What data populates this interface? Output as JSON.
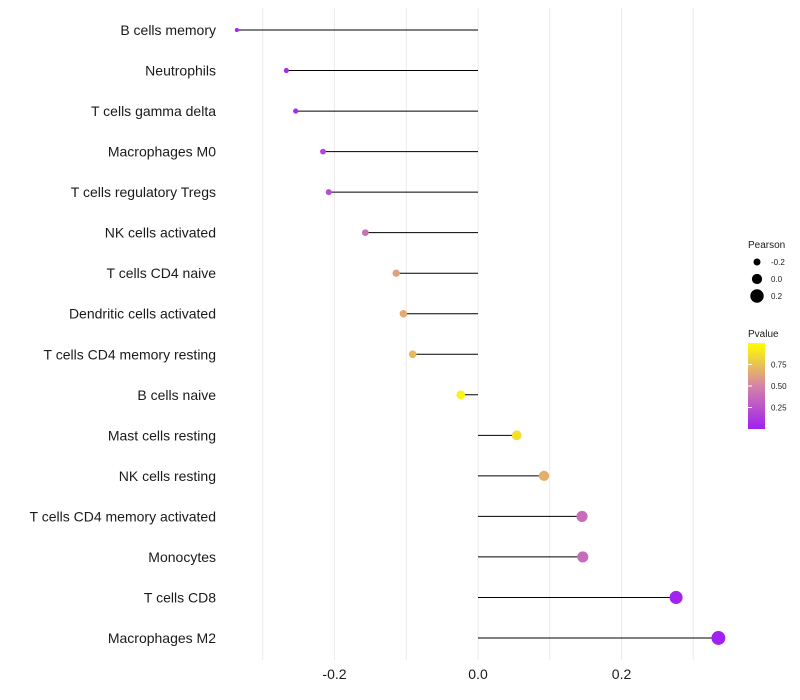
{
  "chart_data": {
    "type": "lollipop",
    "title": "",
    "xlabel": "",
    "ylabel": "",
    "xlim": [
      -0.34,
      0.34
    ],
    "xticks": [
      -0.2,
      0.0,
      0.2
    ],
    "xtick_labels": [
      "-0.2",
      "0.0",
      "0.2"
    ],
    "grid": true,
    "categories": [
      "B cells memory",
      "Neutrophils",
      "T cells gamma delta",
      "Macrophages M0",
      "T cells regulatory  Tregs",
      "NK cells activated",
      "T cells CD4 naive",
      "Dendritic cells activated",
      "T cells CD4 memory resting",
      "B cells naive",
      "Mast cells resting",
      "NK cells resting",
      "T cells CD4 memory activated",
      "Monocytes",
      "T cells CD8",
      "Macrophages M2"
    ],
    "values": [
      -0.336,
      -0.267,
      -0.254,
      -0.216,
      -0.208,
      -0.157,
      -0.114,
      -0.104,
      -0.091,
      -0.024,
      0.054,
      0.092,
      0.145,
      0.146,
      0.276,
      0.335
    ],
    "pvalues": [
      0.02,
      0.05,
      0.07,
      0.18,
      0.22,
      0.4,
      0.62,
      0.66,
      0.72,
      0.95,
      0.87,
      0.68,
      0.38,
      0.38,
      0.02,
      0.01
    ],
    "legend": {
      "size": {
        "title": "Pearson",
        "labels": [
          "-0.2",
          "0.0",
          "0.2"
        ],
        "values": [
          -0.2,
          0.0,
          0.2
        ]
      },
      "color": {
        "title": "Pvalue",
        "labels": [
          "0.75",
          "0.50",
          "0.25"
        ],
        "values": [
          0.75,
          0.5,
          0.25
        ],
        "range": [
          0.0,
          1.0
        ],
        "low_color": "#a020f0",
        "mid_color": "#d484a8",
        "high_color": "#ffff00"
      },
      "position": "right"
    }
  }
}
